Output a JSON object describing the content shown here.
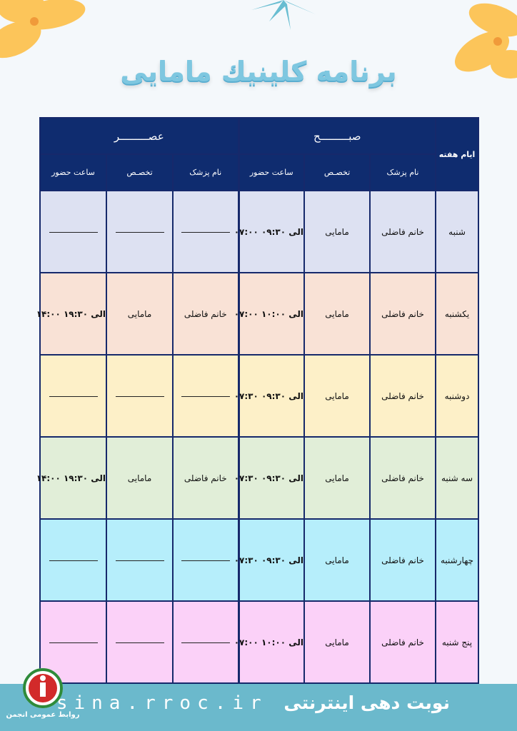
{
  "title": "برنامه کلینیك مامایی",
  "table": {
    "day_header": "ایام هفته",
    "morning_header": "صبـــــــــح",
    "evening_header": "عصـــــــــر",
    "col_doctor": "نام پزشک",
    "col_specialty": "تخصـص",
    "col_time": "ساعت حضور",
    "rows": [
      {
        "day": "شنبه",
        "m_doctor": "خانم فاضلی",
        "m_specialty": "مامایی",
        "m_time": "۰۷:۰۰ الی ۰۹:۳۰",
        "e_doctor": "",
        "e_specialty": "",
        "e_time": "",
        "color": "#dde1f2"
      },
      {
        "day": "یکشنبه",
        "m_doctor": "خانم فاضلی",
        "m_specialty": "مامایی",
        "m_time": "۰۷:۰۰ الی ۱۰:۰۰",
        "e_doctor": "خانم فاضلی",
        "e_specialty": "مامایی",
        "e_time": "۱۴:۰۰ الی ۱۹:۳۰",
        "color": "#f9e2d6"
      },
      {
        "day": "دوشنبه",
        "m_doctor": "خانم فاضلی",
        "m_specialty": "مامایی",
        "m_time": "۰۷:۳۰ الی ۰۹:۳۰",
        "e_doctor": "",
        "e_specialty": "",
        "e_time": "",
        "color": "#fdf0c8"
      },
      {
        "day": "سه شنبه",
        "m_doctor": "خانم فاضلی",
        "m_specialty": "مامایی",
        "m_time": "۰۷:۳۰ الی ۰۹:۳۰",
        "e_doctor": "خانم فاضلی",
        "e_specialty": "مامایی",
        "e_time": "۱۴:۰۰ الی ۱۹:۳۰",
        "color": "#e1eed8"
      },
      {
        "day": "چهارشنبه",
        "m_doctor": "خانم فاضلی",
        "m_specialty": "مامایی",
        "m_time": "۰۷:۳۰ الی ۰۹:۳۰",
        "e_doctor": "",
        "e_specialty": "",
        "e_time": "",
        "color": "#b6eefb"
      },
      {
        "day": "پنج شنبه",
        "m_doctor": "خانم فاضلی",
        "m_specialty": "مامایی",
        "m_time": "۰۷:۰۰ الی ۱۰:۰۰",
        "e_doctor": "",
        "e_specialty": "",
        "e_time": "",
        "color": "#fbd1f8"
      }
    ]
  },
  "footer": {
    "text": "نوبت دهی اینترنتی",
    "site": "sina.rroc.ir",
    "logo_caption": "روابط عمومی انجمن"
  },
  "colors": {
    "header_bg": "#0f2c6f",
    "title": "#7ec7e0",
    "footer_bg": "#6bb9cc",
    "flower": "#fcc55a",
    "leaf": "#68bdd1"
  },
  "icons": [
    "flower-decoration",
    "palm-leaf-decoration",
    "organization-logo"
  ]
}
